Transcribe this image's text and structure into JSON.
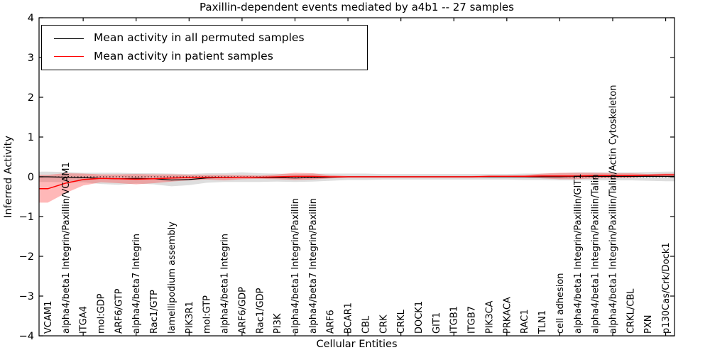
{
  "title": "Paxillin-dependent events mediated by a4b1 -- 27 samples",
  "chart_data": {
    "type": "line",
    "title": "Paxillin-dependent events mediated by a4b1 -- 27 samples",
    "xlabel": "Cellular Entities",
    "ylabel": "Inferred Activity",
    "ylim": [
      -4,
      4
    ],
    "ytick_values": [
      4,
      3,
      2,
      1,
      0,
      -1,
      -2,
      -3,
      -4
    ],
    "ytick_labels": [
      "4",
      "3",
      "2",
      "1",
      "0",
      "−1",
      "−2",
      "−3",
      "−4"
    ],
    "grid": false,
    "legend_position": "upper left",
    "xtick_start_index": 2,
    "xtick_step": 3,
    "categories": [
      "VCAM1",
      "alpha4/beta1 Integrin/Paxillin/VCAM1",
      "ITGA4",
      "mol:GDP",
      "ARF6/GTP",
      "alpha4/beta7 Integrin",
      "Rac1/GTP",
      "lamellipodium assembly",
      "PIK3R1",
      "mol:GTP",
      "alpha4/beta1 Integrin",
      "ARF6/GDP",
      "Rac1/GDP",
      "PI3K",
      "alpha4/beta1 Integrin/Paxillin",
      "alpha4/beta7 Integrin/Paxillin",
      "ARF6",
      "BCAR1",
      "CBL",
      "CRK",
      "CRKL",
      "DOCK1",
      "GIT1",
      "ITGB1",
      "ITGB7",
      "PIK3CA",
      "PRKACA",
      "RAC1",
      "TLN1",
      "cell adhesion",
      "alpha4/beta1 Integrin/Paxillin/GIT1",
      "alpha4/beta1 Integrin/Paxillin/Talin",
      "alpha4/beta1 Integrin/Paxillin/Talin/Actin Cytoskeleton",
      "CRKL/CBL",
      "PXN",
      "p130Cas/Crk/Dock1"
    ],
    "series": [
      {
        "name": "Mean activity in all permuted samples",
        "color": "#000000",
        "line_width": 1.2,
        "band_color": "#999999",
        "band_opacity": 0.32,
        "values": [
          0.0,
          -0.01,
          -0.02,
          -0.04,
          -0.05,
          -0.04,
          -0.05,
          -0.08,
          -0.07,
          -0.03,
          -0.02,
          -0.01,
          -0.02,
          -0.02,
          -0.03,
          -0.02,
          -0.01,
          0.0,
          0.0,
          0.0,
          0.0,
          0.0,
          0.0,
          0.0,
          0.0,
          0.0,
          0.0,
          0.0,
          0.0,
          0.0,
          0.01,
          0.01,
          0.01,
          0.01,
          0.01,
          0.01
        ],
        "band_halfwidth": [
          0.13,
          0.13,
          0.12,
          0.14,
          0.15,
          0.13,
          0.14,
          0.16,
          0.14,
          0.12,
          0.11,
          0.12,
          0.11,
          0.1,
          0.1,
          0.1,
          0.09,
          0.08,
          0.08,
          0.07,
          0.07,
          0.07,
          0.07,
          0.07,
          0.07,
          0.07,
          0.07,
          0.08,
          0.08,
          0.09,
          0.1,
          0.1,
          0.1,
          0.1,
          0.11,
          0.12
        ]
      },
      {
        "name": "Mean activity in patient samples",
        "color": "#ff0000",
        "line_width": 1.5,
        "band_color": "#ff4444",
        "band_opacity": 0.38,
        "values": [
          -0.3,
          -0.16,
          -0.07,
          -0.04,
          -0.05,
          -0.06,
          -0.05,
          -0.03,
          -0.02,
          -0.01,
          -0.02,
          -0.01,
          -0.01,
          0.0,
          0.01,
          0.01,
          0.0,
          0.0,
          0.0,
          0.0,
          0.0,
          0.0,
          0.0,
          0.0,
          0.0,
          0.01,
          0.01,
          0.01,
          0.02,
          0.02,
          0.02,
          0.03,
          0.03,
          0.03,
          0.04,
          0.05
        ],
        "band_halfwidth": [
          0.35,
          0.25,
          0.15,
          0.1,
          0.11,
          0.13,
          0.11,
          0.09,
          0.07,
          0.06,
          0.07,
          0.05,
          0.04,
          0.06,
          0.09,
          0.08,
          0.04,
          0.02,
          0.02,
          0.02,
          0.02,
          0.02,
          0.02,
          0.02,
          0.02,
          0.02,
          0.02,
          0.03,
          0.06,
          0.08,
          0.08,
          0.07,
          0.06,
          0.06,
          0.03,
          0.03
        ]
      }
    ],
    "reference_line": {
      "y": 0,
      "style": "dotted",
      "color": "#000000"
    }
  }
}
